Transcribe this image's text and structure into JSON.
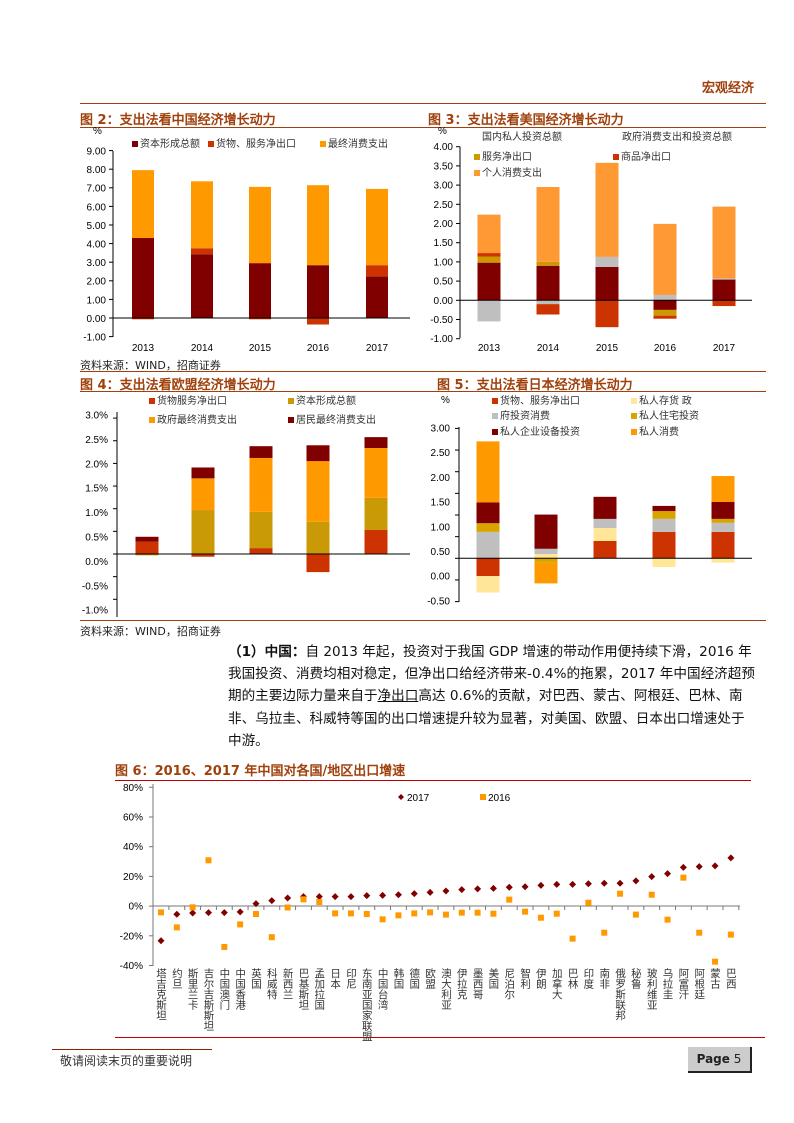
{
  "header": {
    "section": "宏观经济"
  },
  "figures": {
    "fig2_title": "图 2：支出法看中国经济增长动力",
    "fig3_title": "图 3：支出法看美国经济增长动力",
    "fig4_title": "图 4：支出法看欧盟经济增长动力",
    "fig5_title": "图 5：支出法看日本经济增长动力",
    "fig6_title": "图 6：2016、2017 年中国对各国/地区出口增速",
    "source1": "资料来源：WIND，招商证券",
    "source2": "资料来源：WIND，招商证券"
  },
  "paragraph": {
    "label": "（1）中国：",
    "line1": "自 2013 年起，投资对于我国 GDP 增速的带动作用便持续下滑，2016 年",
    "line2": "我国投资、消费均相对稳定，但净出口给经济带来-0.4%的拖累，2017 年中国经济超预",
    "line3a": "期的主要边际力量来自于",
    "line3u": "净出口",
    "line3b": "高达 0.6%的贡献，对巴西、蒙古、阿根廷、巴林、南",
    "line4": "非、乌拉圭、科威特等国的出口增速提升较为显著，对美国、欧盟、日本出口增速处于",
    "line5": "中游。"
  },
  "footer": {
    "note": "敬请阅读末页的重要说明",
    "page_label": "Page",
    "page_number": "5"
  },
  "chart_data": [
    {
      "id": "fig2",
      "type": "bar",
      "stacked": true,
      "ylabel": "%",
      "categories": [
        "2013",
        "2014",
        "2015",
        "2016",
        "2017"
      ],
      "ylim": [
        -1,
        9
      ],
      "yticks": [
        "9.00",
        "8.00",
        "7.00",
        "6.00",
        "5.00",
        "4.00",
        "3.00",
        "2.00",
        "1.00",
        "0.00",
        "-1.00"
      ],
      "series": [
        {
          "name": "资本形成总额",
          "color": "#800000",
          "values": [
            4.3,
            3.43,
            2.95,
            2.84,
            2.24
          ]
        },
        {
          "name": "货物、服务净出口",
          "color": "#CC3300",
          "values": [
            -0.07,
            0.32,
            -0.07,
            -0.35,
            0.6
          ]
        },
        {
          "name": "最终消费支出",
          "color": "#FF9900",
          "values": [
            3.65,
            3.6,
            4.1,
            4.3,
            4.1
          ]
        }
      ]
    },
    {
      "id": "fig3",
      "type": "bar",
      "stacked": true,
      "ylabel": "%",
      "categories": [
        "2013",
        "2014",
        "2015",
        "2016",
        "2017"
      ],
      "ylim": [
        -1,
        4
      ],
      "yticks": [
        "4.00",
        "3.50",
        "3.00",
        "2.50",
        "2.00",
        "1.50",
        "1.00",
        "0.50",
        "0.00",
        "-0.50",
        "-1.00"
      ],
      "series": [
        {
          "name": "国内私人投资总额",
          "color": "#800000",
          "values": [
            0.98,
            0.9,
            0.87,
            -0.25,
            0.54
          ]
        },
        {
          "name": "政府消费支出和投资总额",
          "color": "#BFBFBF",
          "values": [
            -0.55,
            -0.1,
            0.26,
            0.14,
            0.03
          ]
        },
        {
          "name": "服务净出口",
          "color": "#CC9900",
          "values": [
            0.16,
            0.1,
            0,
            -0.15,
            0
          ]
        },
        {
          "name": "商品净出口",
          "color": "#CC3300",
          "values": [
            0.09,
            -0.27,
            -0.7,
            -0.08,
            -0.15
          ]
        },
        {
          "name": "个人消费支出",
          "color": "#FF9933",
          "values": [
            1.0,
            1.95,
            2.45,
            1.85,
            1.87
          ]
        }
      ]
    },
    {
      "id": "fig4",
      "type": "bar",
      "stacked": true,
      "categories": [
        "2013",
        "2014",
        "2015",
        "2016",
        "2017"
      ],
      "yticks": [
        "3.0%",
        "2.5%",
        "2.0%",
        "1.5%",
        "1.0%",
        "0.5%",
        "0.0%",
        "-0.5%",
        "-1.0%"
      ],
      "series": [
        {
          "name": "货物服务净出口",
          "color": "#CC3300",
          "values": [
            0.27,
            -0.06,
            0.13,
            -0.4,
            0.53
          ]
        },
        {
          "name": "资本形成总额",
          "color": "#C99A06",
          "values": [
            -0.03,
            0.97,
            0.8,
            0.71,
            0.71
          ]
        },
        {
          "name": "政府最终消费支出",
          "color": "#FF9900",
          "values": [
            0,
            0.7,
            1.19,
            1.34,
            1.1
          ]
        },
        {
          "name": "居民最终消费支出",
          "color": "#800000",
          "values": [
            0.11,
            0.24,
            0.26,
            0.35,
            0.24
          ]
        }
      ]
    },
    {
      "id": "fig5",
      "type": "bar",
      "stacked": true,
      "ylabel": "%",
      "categories": [
        "2013",
        "2014",
        "2015",
        "2016",
        "2017"
      ],
      "yticks": [
        "3.00",
        "2.50",
        "2.00",
        "1.50",
        "1.00",
        "0.50",
        "0.00",
        "-0.50"
      ],
      "series": [
        {
          "name": "货物、服务净出口",
          "color": "#CC3300",
          "values": [
            -0.41,
            0,
            0.4,
            0.61,
            0.61
          ]
        },
        {
          "name": "私人存货 政",
          "color": "#FFE699",
          "values": [
            -0.38,
            0.1,
            0.3,
            -0.2,
            -0.1
          ]
        },
        {
          "name": "府投资消费",
          "color": "#BFBFBF",
          "values": [
            0.61,
            0.12,
            0.21,
            0.3,
            0.21
          ]
        },
        {
          "name": "私人住宅投资",
          "color": "#D9A300",
          "values": [
            0.2,
            -0.1,
            0,
            0.18,
            0.09
          ]
        },
        {
          "name": "私人企业设备投资",
          "color": "#800000",
          "values": [
            0.48,
            0.79,
            0.51,
            0.12,
            0.39
          ]
        },
        {
          "name": "私人消费",
          "color": "#FF9900",
          "values": [
            1.41,
            -0.48,
            0,
            0,
            0.6
          ]
        }
      ]
    },
    {
      "id": "fig6",
      "type": "scatter",
      "ylim": [
        -40,
        80
      ],
      "yticks": [
        "80%",
        "60%",
        "40%",
        "20%",
        "0%",
        "-20%",
        "-40%"
      ],
      "categories": [
        "塔吉克斯坦",
        "约旦",
        "斯里兰卡",
        "吉尔吉斯斯坦",
        "中国澳门",
        "中国香港",
        "英国",
        "科威特",
        "新西兰",
        "巴基斯坦",
        "孟加拉国",
        "日本",
        "印尼",
        "东南亚国家联盟",
        "中国台湾",
        "韩国",
        "德国",
        "欧盟",
        "澳大利亚",
        "伊拉克",
        "墨西哥",
        "美国",
        "尼泊尔",
        "智利",
        "伊朗",
        "加拿大",
        "巴林",
        "印度",
        "南非",
        "俄罗斯联邦",
        "秘鲁",
        "玻利维亚",
        "乌拉圭",
        "阿富汗",
        "阿根廷",
        "蒙古",
        "巴西"
      ],
      "series": [
        {
          "name": "2017",
          "marker": "diamond",
          "color": "#800000",
          "values": [
            -23.4,
            -5.6,
            -4.7,
            -4.5,
            -4.5,
            -4,
            1.6,
            3.6,
            5.4,
            6.3,
            6.3,
            6.3,
            6.3,
            7,
            7.2,
            7.6,
            8.3,
            9.2,
            10.1,
            11,
            11.5,
            11.9,
            12.6,
            13,
            13.9,
            14.6,
            14.6,
            15,
            15.3,
            15.3,
            16.9,
            19.8,
            21.8,
            26,
            26.5,
            27,
            32.4
          ]
        },
        {
          "name": "2016",
          "marker": "square",
          "color": "#FF9900",
          "values": [
            -4.3,
            -14.4,
            -0.9,
            30.8,
            -27.6,
            -12.4,
            -5.4,
            -21,
            -1,
            4.5,
            2.7,
            -5,
            -5,
            -5.4,
            -9,
            -6.3,
            -5,
            -4.3,
            -5.8,
            -4.5,
            -4.5,
            -5.2,
            4.3,
            -3.8,
            -7.9,
            -5.2,
            -22,
            2.2,
            -18,
            8.3,
            -5.8,
            7.6,
            -9.2,
            19.1,
            -18,
            -37.5,
            -19.3
          ]
        }
      ]
    }
  ]
}
